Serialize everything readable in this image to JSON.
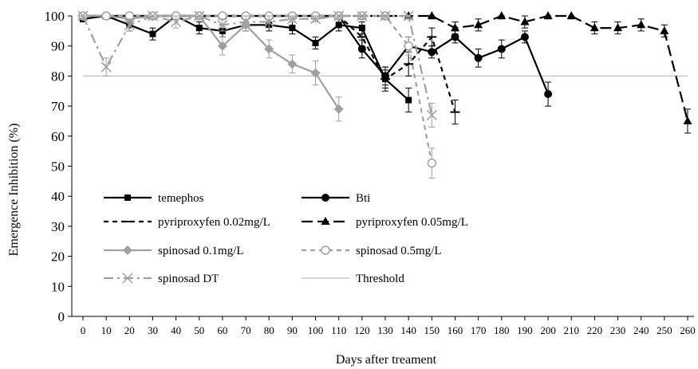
{
  "chart_data": {
    "type": "line",
    "xlabel": "Days after treament",
    "ylabel": "Emergence Inhibition (%)",
    "xlim": [
      0,
      260
    ],
    "ylim": [
      0,
      100
    ],
    "x_ticks": [
      0,
      10,
      20,
      30,
      40,
      50,
      60,
      70,
      80,
      90,
      100,
      110,
      120,
      130,
      140,
      150,
      160,
      170,
      180,
      190,
      200,
      210,
      220,
      230,
      240,
      250,
      260
    ],
    "y_ticks": [
      0,
      10,
      20,
      30,
      40,
      50,
      60,
      70,
      80,
      90,
      100
    ],
    "grid": false,
    "legend_position": "lower-left, inside plot",
    "threshold": 80,
    "series": [
      {
        "name": "temephos",
        "color": "#000000",
        "dash": "solid",
        "marker": "square",
        "x": [
          0,
          10,
          20,
          30,
          40,
          50,
          60,
          70,
          80,
          90,
          100,
          110,
          120,
          130,
          140
        ],
        "y": [
          99,
          100,
          97,
          94,
          100,
          96,
          95,
          97,
          97,
          96,
          91,
          97,
          96,
          79,
          72
        ],
        "err": [
          1,
          1,
          2,
          2,
          1,
          2,
          2,
          2,
          2,
          2,
          2,
          2,
          2,
          3,
          4
        ]
      },
      {
        "name": "Bti",
        "color": "#000000",
        "dash": "solid",
        "marker": "circle",
        "x": [
          0,
          10,
          20,
          30,
          40,
          50,
          60,
          70,
          80,
          90,
          100,
          110,
          120,
          130,
          140,
          150,
          160,
          170,
          180,
          190,
          200
        ],
        "y": [
          100,
          100,
          100,
          100,
          100,
          100,
          100,
          100,
          100,
          100,
          100,
          100,
          89,
          80,
          90,
          88,
          93,
          86,
          89,
          93,
          74
        ],
        "err": [
          1,
          1,
          1,
          1,
          1,
          1,
          1,
          1,
          1,
          1,
          1,
          1,
          3,
          3,
          3,
          2,
          2,
          3,
          3,
          2,
          4
        ]
      },
      {
        "name": "pyriproxyfen 0.02mg/L",
        "color": "#000000",
        "dash": "short",
        "marker": "dash",
        "x": [
          0,
          10,
          20,
          30,
          40,
          50,
          60,
          70,
          80,
          90,
          100,
          110,
          120,
          130,
          140,
          150,
          160
        ],
        "y": [
          100,
          100,
          100,
          100,
          100,
          100,
          100,
          100,
          100,
          100,
          100,
          100,
          93,
          79,
          84,
          93,
          68
        ],
        "err": [
          1,
          1,
          1,
          1,
          1,
          1,
          1,
          1,
          1,
          1,
          1,
          1,
          3,
          4,
          4,
          3,
          4
        ]
      },
      {
        "name": "pyriproxyfen 0.05mg/L",
        "color": "#000000",
        "dash": "long",
        "marker": "triangle",
        "x": [
          0,
          10,
          20,
          30,
          40,
          50,
          60,
          70,
          80,
          90,
          100,
          110,
          120,
          130,
          140,
          150,
          160,
          170,
          180,
          190,
          200,
          210,
          220,
          230,
          240,
          250,
          260
        ],
        "y": [
          100,
          100,
          100,
          100,
          100,
          100,
          100,
          100,
          100,
          100,
          100,
          100,
          100,
          100,
          100,
          100,
          96,
          97,
          100,
          98,
          100,
          100,
          96,
          96,
          97,
          95,
          65
        ],
        "err": [
          1,
          1,
          1,
          1,
          1,
          1,
          1,
          1,
          1,
          1,
          1,
          1,
          1,
          1,
          1,
          1,
          2,
          2,
          1,
          2,
          1,
          1,
          2,
          2,
          2,
          2,
          4
        ]
      },
      {
        "name": "spinosad 0.1mg/L",
        "color": "#a0a0a0",
        "dash": "solid",
        "marker": "diamond",
        "x": [
          0,
          10,
          20,
          30,
          40,
          50,
          60,
          70,
          80,
          90,
          100,
          110
        ],
        "y": [
          100,
          100,
          99,
          100,
          100,
          100,
          90,
          97,
          89,
          84,
          81,
          69
        ],
        "err": [
          1,
          1,
          1,
          1,
          1,
          1,
          3,
          2,
          3,
          3,
          4,
          4
        ]
      },
      {
        "name": "spinosad 0.5mg/L",
        "color": "#a0a0a0",
        "dash": "short",
        "marker": "open-circle",
        "x": [
          0,
          10,
          20,
          30,
          40,
          50,
          60,
          70,
          80,
          90,
          100,
          110,
          120,
          130,
          140,
          150
        ],
        "y": [
          100,
          100,
          100,
          100,
          100,
          100,
          100,
          100,
          100,
          100,
          100,
          100,
          100,
          100,
          90,
          51
        ],
        "err": [
          1,
          1,
          1,
          1,
          1,
          1,
          1,
          1,
          1,
          1,
          1,
          1,
          1,
          1,
          3,
          5
        ]
      },
      {
        "name": "spinosad DT",
        "color": "#a0a0a0",
        "dash": "dashdot",
        "marker": "x",
        "x": [
          0,
          10,
          20,
          30,
          40,
          50,
          60,
          70,
          80,
          90,
          100,
          110,
          120,
          130,
          140,
          150
        ],
        "y": [
          100,
          83,
          97,
          100,
          98,
          100,
          97,
          98,
          98,
          99,
          99,
          100,
          100,
          100,
          100,
          67
        ],
        "err": [
          1,
          3,
          2,
          1,
          2,
          1,
          2,
          2,
          2,
          1,
          1,
          1,
          1,
          1,
          1,
          4
        ]
      },
      {
        "name": "Threshold",
        "color": "#c8c8c8",
        "dash": "solid",
        "marker": "none",
        "x": [
          0,
          260
        ],
        "y": [
          80,
          80
        ],
        "err": [
          0,
          0
        ]
      }
    ]
  }
}
